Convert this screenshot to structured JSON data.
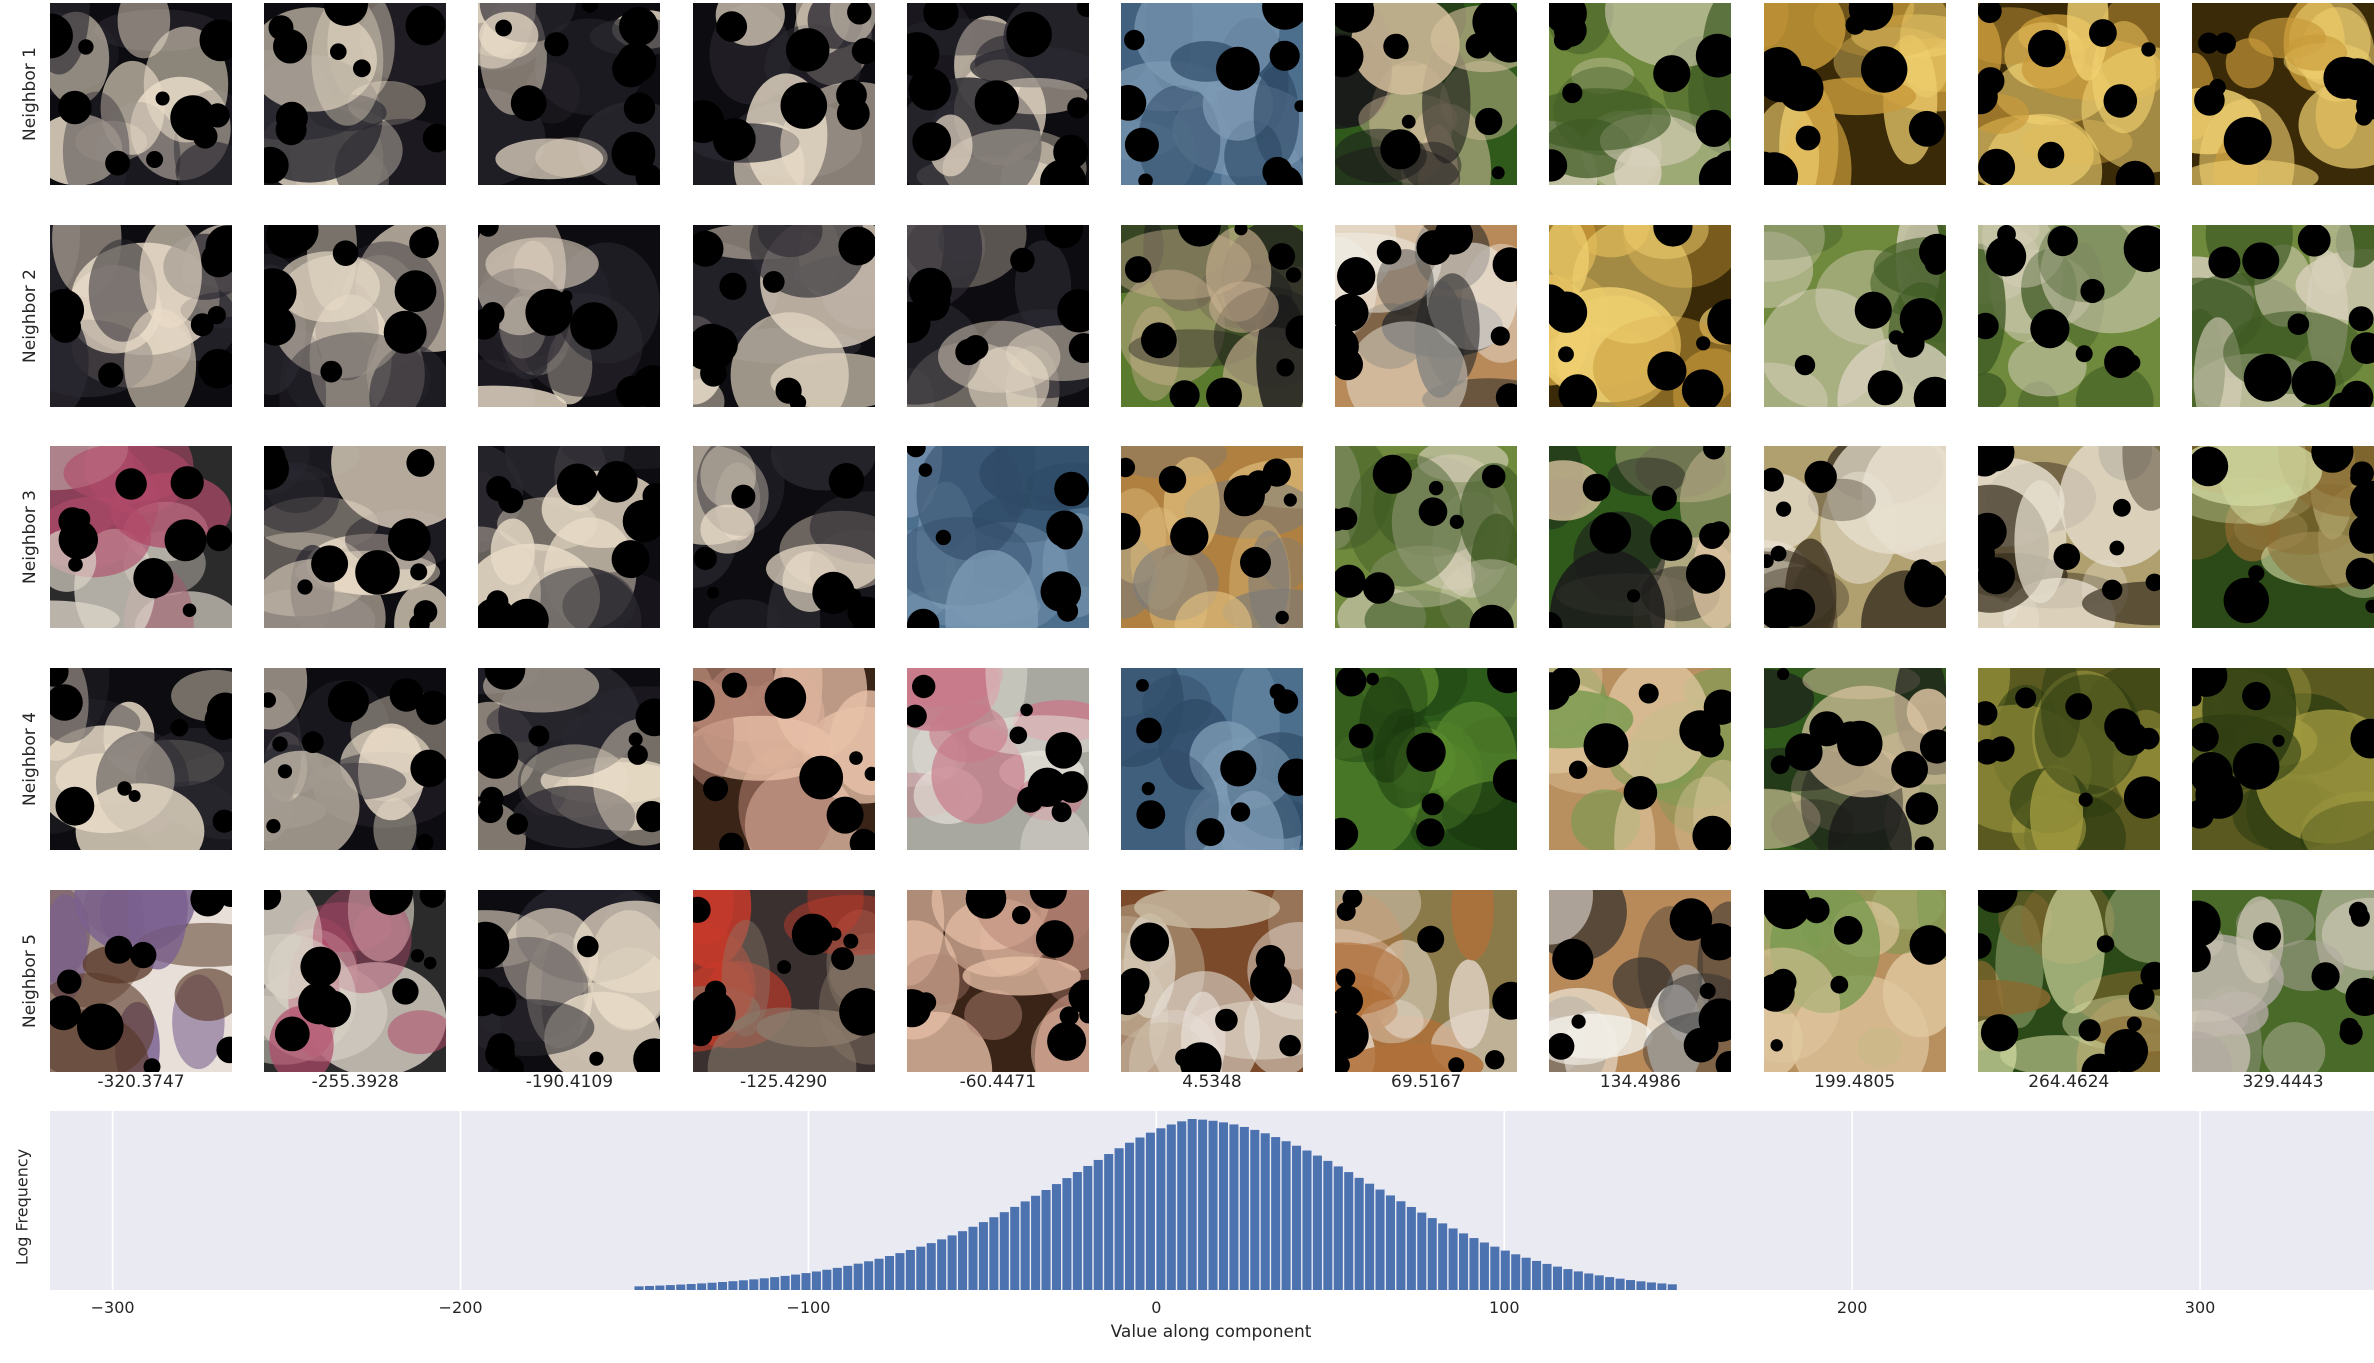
{
  "neighbor_rows": [
    "Neighbor 1",
    "Neighbor 2",
    "Neighbor 3",
    "Neighbor 4",
    "Neighbor 5"
  ],
  "column_values": [
    "-320.3747",
    "-255.3928",
    "-190.4109",
    "-125.4290",
    "-60.4471",
    "4.5348",
    "69.5167",
    "134.4986",
    "199.4805",
    "264.4624",
    "329.4443"
  ],
  "thumbnails": [
    [
      "black-dog",
      "black-dog",
      "black-dog",
      "black-dog",
      "black-dog",
      "water",
      "puppies-tire",
      "wolf-pup",
      "golden-dog",
      "golden-dog",
      "golden-dog"
    ],
    [
      "black-dog",
      "black-dog",
      "black-dog",
      "black-dog",
      "black-dog",
      "dogs-grass",
      "corgi-face",
      "golden-dog",
      "wolf-pup",
      "wolf-pup",
      "wolf-pup"
    ],
    [
      "terrier",
      "black-dog",
      "black-dog",
      "black-dog",
      "water",
      "golden-puppy",
      "wolf-pup",
      "puppies-tire",
      "chihuahua",
      "chihuahua",
      "monkey"
    ],
    [
      "black-dog",
      "black-dog",
      "black-dog",
      "woman-face",
      "white-dog",
      "water",
      "leaves",
      "tan-puppy",
      "puppies-tire",
      "frog",
      "frog"
    ],
    [
      "woman-back",
      "terrier",
      "black-dog",
      "red-blanket-dog",
      "woman-face",
      "brown-puppy",
      "beagle-puppy",
      "corgi-face",
      "tan-puppy",
      "monkey",
      "wolf-cub"
    ]
  ],
  "thumbnail_palette": {
    "black-dog": [
      "#0d0c10",
      "#2a2830",
      "#e9dcc8"
    ],
    "water": [
      "#4d6f8e",
      "#7d9ab4",
      "#2e4a66"
    ],
    "puppies-tire": [
      "#2f5a1c",
      "#1a1a1a",
      "#d9c2a0"
    ],
    "wolf-pup": [
      "#6f8a3c",
      "#d8d0bc",
      "#3f5a24"
    ],
    "golden-dog": [
      "#3a2a08",
      "#c89a3a",
      "#f0d070"
    ],
    "dogs-grass": [
      "#5a7a2e",
      "#1c1c1c",
      "#c8b090"
    ],
    "corgi-face": [
      "#b88a5a",
      "#f2efe8",
      "#2a2a2a"
    ],
    "terrier": [
      "#2b2b2b",
      "#d9d2c6",
      "#b04a6a"
    ],
    "golden-puppy": [
      "#b08040",
      "#7a7a7a",
      "#e0c080"
    ],
    "chihuahua": [
      "#b0a070",
      "#e8e0d0",
      "#3a3020"
    ],
    "monkey": [
      "#2c4a18",
      "#8a6a30",
      "#d0d8a0"
    ],
    "woman-face": [
      "#3a2418",
      "#e8c0a8",
      "#b08070"
    ],
    "white-dog": [
      "#a8a8a0",
      "#e8e4dc",
      "#c87a8a"
    ],
    "leaves": [
      "#2c5a1a",
      "#5a8a2e",
      "#1a3a10"
    ],
    "tan-puppy": [
      "#b89060",
      "#7a9a50",
      "#e0c8a0"
    ],
    "frog": [
      "#5a5a20",
      "#a09a40",
      "#2a3a10"
    ],
    "woman-back": [
      "#e8e0d8",
      "#7a6090",
      "#5a3a2a"
    ],
    "red-blanket-dog": [
      "#3a3030",
      "#c83a2a",
      "#8a7a6a"
    ],
    "brown-puppy": [
      "#7a4a2a",
      "#c8b8a0",
      "#e8e0d8"
    ],
    "beagle-puppy": [
      "#8a7a4a",
      "#e8dcd0",
      "#b0703a"
    ],
    "wolf-cub": [
      "#4a6a2a",
      "#b0a8a0",
      "#d0c8b8"
    ]
  },
  "chart_data": {
    "type": "bar",
    "xlabel": "Value along component",
    "ylabel": "Log Frequency",
    "xlim": [
      -318,
      350
    ],
    "xticks": [
      -300,
      -200,
      -100,
      0,
      100,
      200,
      300
    ],
    "xtick_labels": [
      "−300",
      "−200",
      "−100",
      "0",
      "100",
      "200",
      "300"
    ],
    "grid": true,
    "bar_color": "#4c72b0",
    "background_color": "#eaeaf2",
    "bins": {
      "start": -150,
      "width": 3,
      "log_frequency": [
        0.0214,
        0.0236,
        0.0261,
        0.0288,
        0.0318,
        0.035,
        0.0386,
        0.0425,
        0.0468,
        0.0515,
        0.0567,
        0.0623,
        0.0684,
        0.0751,
        0.0824,
        0.0903,
        0.099,
        0.1083,
        0.1185,
        0.1295,
        0.1413,
        0.1541,
        0.1679,
        0.1828,
        0.1987,
        0.2157,
        0.234,
        0.2534,
        0.2741,
        0.2961,
        0.3193,
        0.3439,
        0.3698,
        0.397,
        0.4255,
        0.4551,
        0.486,
        0.518,
        0.551,
        0.5848,
        0.6194,
        0.6545,
        0.6899,
        0.7254,
        0.7606,
        0.7952,
        0.8289,
        0.8612,
        0.8918,
        0.9201,
        0.9456,
        0.9679,
        0.9864,
        1.0,
        0.9962,
        0.9897,
        0.9803,
        0.9683,
        0.9535,
        0.9362,
        0.9164,
        0.8943,
        0.87,
        0.8437,
        0.8157,
        0.786,
        0.7549,
        0.7227,
        0.6896,
        0.6558,
        0.6216,
        0.5873,
        0.553,
        0.519,
        0.4855,
        0.4526,
        0.4206,
        0.3896,
        0.3597,
        0.3311,
        0.3038,
        0.2779,
        0.2534,
        0.2304,
        0.2088,
        0.1887,
        0.17,
        0.1527,
        0.1368,
        0.1222,
        0.1088,
        0.0966,
        0.0855,
        0.0754,
        0.0663,
        0.0581,
        0.0508,
        0.0442,
        0.0384,
        0.0332
      ]
    }
  }
}
